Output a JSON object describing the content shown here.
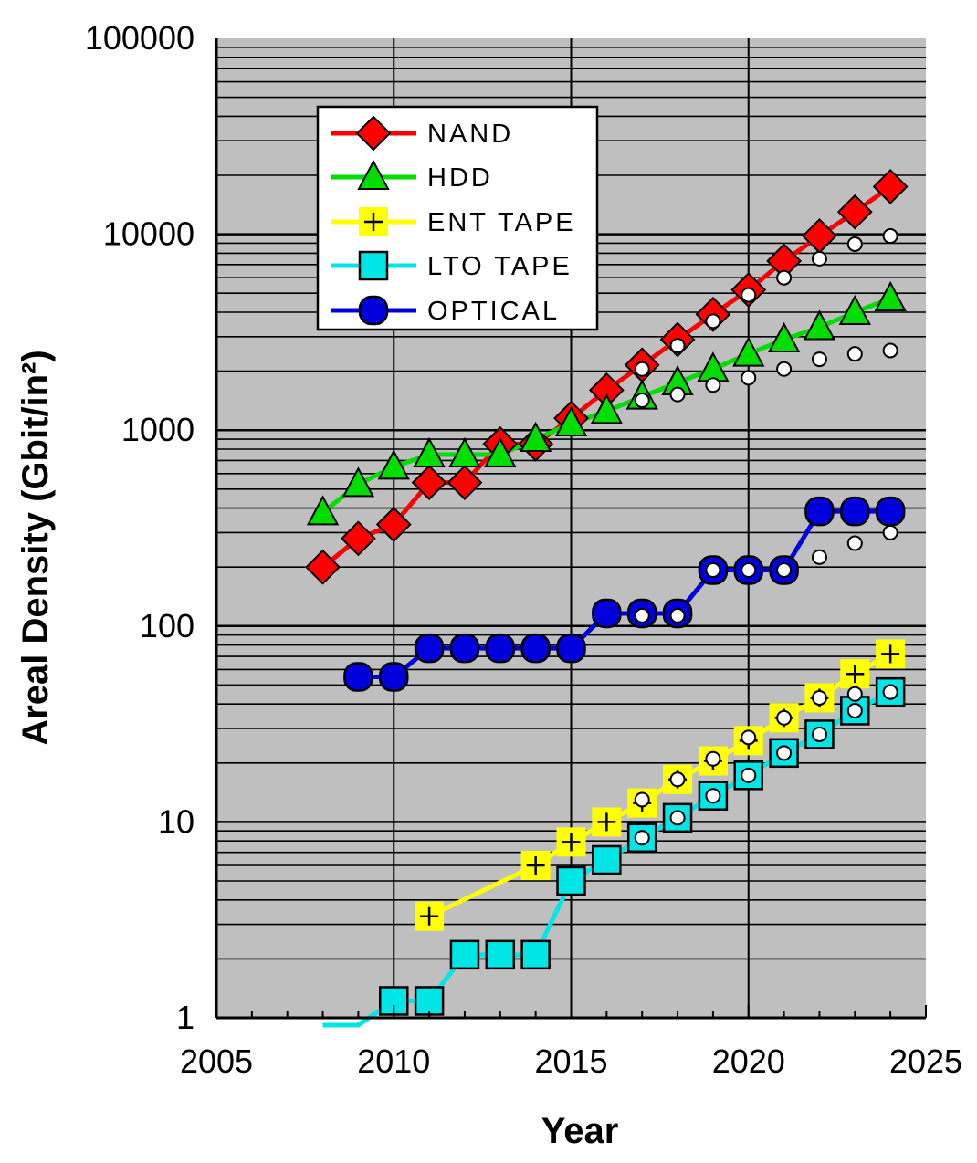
{
  "chart_data": {
    "type": "line",
    "xlabel": "Year",
    "ylabel": "Areal Density (Gbit/in²)",
    "y_scale": "log",
    "xlim": [
      2005,
      2025
    ],
    "ylim": [
      1,
      100000
    ],
    "grid": true,
    "legend_position": "top-left",
    "x_tick_labels": [
      "2005",
      "2010",
      "2015",
      "2020",
      "2025"
    ],
    "y_tick_labels": [
      "1",
      "10",
      "100",
      "1000",
      "10000",
      "100000"
    ],
    "colors": {
      "plot_background": "#bfbfbf",
      "NAND": "#ff0000",
      "HDD": "#00dd00",
      "ENT TAPE": "#ffff00",
      "LTO TAPE": "#00e5e5",
      "OPTICAL": "#0000dd"
    },
    "series": [
      {
        "name": "NAND",
        "marker": "diamond",
        "x": [
          2008,
          2009,
          2010,
          2011,
          2012,
          2013,
          2014,
          2015,
          2016,
          2017,
          2018,
          2019,
          2020,
          2021,
          2022,
          2023,
          2024
        ],
        "values": [
          200,
          280,
          330,
          540,
          540,
          850,
          850,
          1150,
          1600,
          2150,
          2900,
          3900,
          5200,
          7300,
          9800,
          13000,
          17500
        ]
      },
      {
        "name": "HDD",
        "marker": "triangle",
        "x": [
          2008,
          2009,
          2010,
          2011,
          2012,
          2013,
          2014,
          2015,
          2016,
          2017,
          2018,
          2019,
          2020,
          2021,
          2022,
          2023,
          2024
        ],
        "values": [
          380,
          530,
          650,
          750,
          750,
          750,
          900,
          1080,
          1250,
          1480,
          1750,
          2050,
          2450,
          2900,
          3350,
          4000,
          4700
        ]
      },
      {
        "name": "ENT TAPE",
        "marker": "plus-square",
        "x": [
          2011,
          2014,
          2015,
          2016,
          2017,
          2018,
          2019,
          2020,
          2021,
          2022,
          2023,
          2024
        ],
        "values": [
          3.3,
          6,
          7.9,
          10,
          12.5,
          16.5,
          20.5,
          26,
          34,
          43,
          57,
          72
        ]
      },
      {
        "name": "LTO TAPE",
        "marker": "square",
        "x": [
          2008,
          2009,
          2010,
          2011,
          2012,
          2013,
          2014,
          2015,
          2016,
          2017,
          2018,
          2019,
          2020,
          2021,
          2022,
          2023,
          2024
        ],
        "values": [
          0.9,
          0.9,
          1.22,
          1.22,
          2.1,
          2.1,
          2.1,
          5.0,
          6.4,
          8.3,
          10.5,
          13.6,
          17.3,
          22.5,
          28,
          37,
          46
        ]
      },
      {
        "name": "OPTICAL",
        "marker": "circle",
        "x": [
          2009,
          2010,
          2011,
          2012,
          2013,
          2014,
          2015,
          2016,
          2017,
          2018,
          2019,
          2020,
          2021,
          2022,
          2023,
          2024
        ],
        "values": [
          55,
          55,
          77,
          77,
          77,
          77,
          77,
          116,
          116,
          116,
          193,
          193,
          193,
          385,
          385,
          385
        ]
      }
    ],
    "projections": {
      "marker": "small-white-circle",
      "points": [
        {
          "series": "NAND",
          "x": [
            2017,
            2018,
            2019,
            2020,
            2021,
            2022,
            2023,
            2024
          ],
          "values": [
            2050,
            2700,
            3600,
            4900,
            6000,
            7500,
            8900,
            9800
          ]
        },
        {
          "series": "HDD",
          "x": [
            2017,
            2018,
            2019,
            2020,
            2021,
            2022,
            2023,
            2024
          ],
          "values": [
            1420,
            1520,
            1700,
            1850,
            2050,
            2300,
            2450,
            2550
          ]
        },
        {
          "series": "OPTICAL",
          "x": [
            2017,
            2018,
            2019,
            2020,
            2021,
            2022,
            2023,
            2024
          ],
          "values": [
            113,
            113,
            193,
            193,
            193,
            225,
            265,
            300
          ]
        },
        {
          "series": "ENT TAPE",
          "x": [
            2017,
            2018,
            2019,
            2020,
            2021,
            2022,
            2023,
            2024
          ],
          "values": [
            13,
            16.5,
            21,
            27,
            34,
            43,
            45,
            46
          ]
        },
        {
          "series": "LTO TAPE",
          "x": [
            2017,
            2018,
            2019,
            2020,
            2021,
            2022,
            2023,
            2024
          ],
          "values": [
            8.3,
            10.5,
            13.6,
            17.3,
            22.5,
            28,
            37,
            46
          ]
        }
      ]
    }
  }
}
